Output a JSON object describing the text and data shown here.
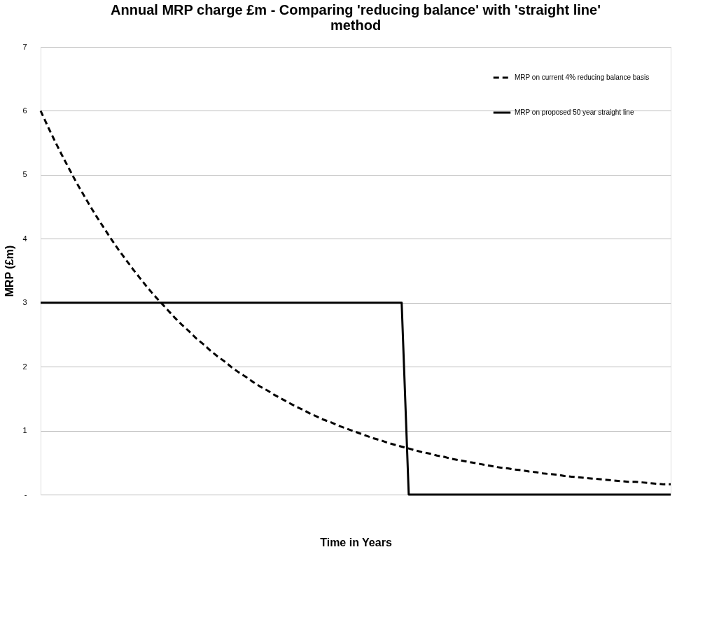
{
  "chart_data": {
    "type": "line",
    "title": "Annual MRP charge £m - Comparing 'reducing balance' with 'straight line' method",
    "xlabel": "Time in Years",
    "ylabel": "MRP (£m)",
    "categories": [
      null,
      null,
      null,
      null,
      null,
      null,
      null,
      null,
      null,
      null,
      null,
      null,
      null,
      null,
      null,
      null,
      null,
      null,
      null,
      null,
      null,
      null,
      null,
      null,
      null,
      null,
      null,
      null,
      null,
      null,
      null,
      null,
      null,
      null,
      null,
      null,
      null,
      null,
      null,
      null,
      null,
      null,
      null,
      null,
      null,
      null,
      null,
      null,
      null,
      null,
      null,
      null,
      null,
      null,
      null,
      null,
      null,
      null,
      null,
      null,
      null,
      null,
      null,
      null,
      null,
      null,
      null,
      null,
      null,
      null,
      null,
      null,
      null,
      null,
      null,
      null,
      null,
      null,
      null,
      null,
      null,
      null,
      null,
      null,
      null,
      null,
      null,
      null,
      null,
      null
    ],
    "series": [
      {
        "name": "MRP on current 4% reducing balance basis",
        "color": "#000000",
        "line_style": "dashed",
        "values": [
          6.0,
          5.76,
          5.53,
          5.31,
          5.1,
          4.89,
          4.7,
          4.51,
          4.33,
          4.16,
          3.99,
          3.83,
          3.68,
          3.53,
          3.39,
          3.25,
          3.12,
          3.0,
          2.88,
          2.76,
          2.65,
          2.55,
          2.44,
          2.35,
          2.25,
          2.16,
          2.08,
          1.99,
          1.91,
          1.84,
          1.76,
          1.69,
          1.63,
          1.56,
          1.5,
          1.44,
          1.38,
          1.33,
          1.27,
          1.22,
          1.17,
          1.13,
          1.08,
          1.04,
          1.0,
          0.96,
          0.92,
          0.88,
          0.85,
          0.81,
          0.78,
          0.75,
          0.72,
          0.69,
          0.66,
          0.64,
          0.61,
          0.59,
          0.56,
          0.54,
          0.52,
          0.5,
          0.48,
          0.46,
          0.44,
          0.42,
          0.41,
          0.39,
          0.38,
          0.36,
          0.35,
          0.33,
          0.32,
          0.31,
          0.29,
          0.28,
          0.27,
          0.26,
          0.25,
          0.24,
          0.23,
          0.22,
          0.21,
          0.2,
          0.2,
          0.19,
          0.18,
          0.17,
          0.16,
          0.16
        ]
      },
      {
        "name": "MRP on proposed 50 year straight line",
        "color": "#000000",
        "line_style": "solid",
        "values": [
          3,
          3,
          3,
          3,
          3,
          3,
          3,
          3,
          3,
          3,
          3,
          3,
          3,
          3,
          3,
          3,
          3,
          3,
          3,
          3,
          3,
          3,
          3,
          3,
          3,
          3,
          3,
          3,
          3,
          3,
          3,
          3,
          3,
          3,
          3,
          3,
          3,
          3,
          3,
          3,
          3,
          3,
          3,
          3,
          3,
          3,
          3,
          3,
          3,
          3,
          3,
          3,
          0,
          0,
          0,
          0,
          0,
          0,
          0,
          0,
          0,
          0,
          0,
          0,
          0,
          0,
          0,
          0,
          0,
          0,
          0,
          0,
          0,
          0,
          0,
          0,
          0,
          0,
          0,
          0,
          0,
          0,
          0,
          0,
          0,
          0,
          0,
          0,
          0,
          0
        ]
      }
    ],
    "ylim": [
      0,
      7
    ],
    "yticks": [
      {
        "value": 0,
        "label": "-"
      },
      1,
      2,
      3,
      4,
      5,
      6,
      7
    ],
    "tick_labels": "y",
    "grid": "y",
    "legend": "top right",
    "marker": "none"
  }
}
